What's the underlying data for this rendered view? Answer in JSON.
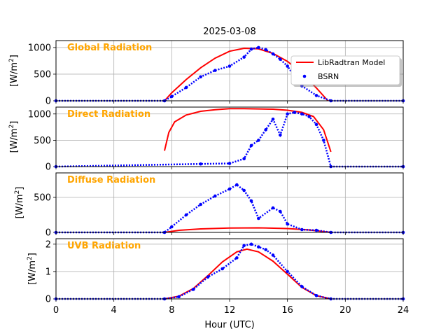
{
  "chart_data": [
    {
      "type": "line",
      "panel_title": "Global Radiation",
      "title": "2025-03-08",
      "ylabel": "[W/m²]",
      "xlim": [
        0,
        24
      ],
      "ylim": [
        0,
        1130
      ],
      "yticks": [
        "0",
        "500",
        "1000"
      ],
      "grid": true,
      "legend_position": "right",
      "series": [
        {
          "name": "LibRadtran Model",
          "style": "line",
          "x": [
            7.5,
            8.0,
            9.0,
            10.0,
            11.0,
            12.0,
            13.0,
            14.0,
            15.0,
            16.0,
            17.0,
            18.0,
            18.8
          ],
          "y": [
            0,
            150,
            400,
            620,
            800,
            930,
            985,
            975,
            890,
            740,
            520,
            240,
            0
          ]
        },
        {
          "name": "BSRN",
          "style": "points",
          "x": [
            0,
            7.5,
            8.0,
            9.0,
            10.0,
            11.0,
            12.0,
            13.0,
            13.5,
            14.0,
            14.5,
            15.0,
            15.5,
            16.0,
            16.5,
            17.0,
            18.0,
            19.0,
            24.0
          ],
          "y": [
            0,
            0,
            80,
            250,
            450,
            570,
            650,
            820,
            970,
            1000,
            960,
            880,
            780,
            650,
            450,
            280,
            100,
            0,
            0
          ]
        }
      ]
    },
    {
      "type": "line",
      "panel_title": "Direct Radiation",
      "ylabel": "[W/m²]",
      "xlim": [
        0,
        24
      ],
      "ylim": [
        0,
        1130
      ],
      "yticks": [
        "0",
        "500",
        "1000"
      ],
      "grid": true,
      "series": [
        {
          "name": "LibRadtran Model",
          "style": "line",
          "x": [
            7.5,
            7.8,
            8.2,
            9.0,
            10.0,
            11.0,
            12.0,
            13.0,
            14.0,
            15.0,
            16.0,
            17.0,
            17.8,
            18.5,
            19.0
          ],
          "y": [
            300,
            650,
            850,
            980,
            1050,
            1080,
            1100,
            1100,
            1095,
            1090,
            1070,
            1030,
            950,
            700,
            280
          ]
        },
        {
          "name": "BSRN",
          "style": "points",
          "x": [
            0,
            10.0,
            12.0,
            13.0,
            13.5,
            14.0,
            14.5,
            15.0,
            15.5,
            16.0,
            16.5,
            17.0,
            17.5,
            18.0,
            18.5,
            19.0,
            24.0
          ],
          "y": [
            0,
            50,
            60,
            150,
            400,
            500,
            700,
            900,
            600,
            1000,
            1030,
            1000,
            950,
            800,
            500,
            0,
            0
          ]
        }
      ]
    },
    {
      "type": "line",
      "panel_title": "Diffuse Radiation",
      "ylabel": "[W/m²]",
      "xlim": [
        0,
        24
      ],
      "ylim": [
        0,
        850
      ],
      "yticks": [
        "0",
        "500"
      ],
      "grid": true,
      "series": [
        {
          "name": "LibRadtran Model",
          "style": "line",
          "x": [
            7.5,
            8.5,
            10.0,
            12.0,
            14.0,
            16.0,
            17.5,
            19.0
          ],
          "y": [
            0,
            30,
            50,
            62,
            65,
            55,
            35,
            0
          ]
        },
        {
          "name": "BSRN",
          "style": "points",
          "x": [
            0,
            7.5,
            8.0,
            9.0,
            10.0,
            11.0,
            12.0,
            12.5,
            13.0,
            13.5,
            14.0,
            15.0,
            15.5,
            16.0,
            17.0,
            18.0,
            19.0,
            24.0
          ],
          "y": [
            0,
            0,
            80,
            250,
            400,
            520,
            620,
            680,
            600,
            450,
            200,
            350,
            300,
            120,
            40,
            30,
            0,
            0
          ]
        }
      ]
    },
    {
      "type": "line",
      "panel_title": "UVB Radiation",
      "ylabel": "[W/m²]",
      "xlabel": "Hour (UTC)",
      "xlim": [
        0,
        24
      ],
      "xticks": [
        "0",
        "4",
        "8",
        "12",
        "16",
        "20",
        "24"
      ],
      "ylim": [
        0,
        2.2
      ],
      "yticks": [
        "0",
        "1",
        "2"
      ],
      "grid": true,
      "series": [
        {
          "name": "LibRadtran Model",
          "style": "line",
          "x": [
            7.5,
            8.5,
            9.5,
            10.5,
            11.5,
            12.5,
            13.2,
            14.0,
            15.0,
            16.0,
            17.0,
            18.0,
            19.0
          ],
          "y": [
            0,
            0.1,
            0.38,
            0.85,
            1.35,
            1.72,
            1.82,
            1.72,
            1.38,
            0.9,
            0.42,
            0.12,
            0
          ]
        },
        {
          "name": "BSRN",
          "style": "points",
          "x": [
            0,
            7.5,
            8.5,
            9.5,
            10.5,
            11.5,
            12.5,
            13.0,
            13.5,
            14.0,
            14.5,
            15.0,
            16.0,
            17.0,
            18.0,
            19.0,
            24.0
          ],
          "y": [
            0,
            0,
            0.08,
            0.35,
            0.8,
            1.1,
            1.5,
            1.95,
            2.0,
            1.9,
            1.8,
            1.6,
            1.0,
            0.45,
            0.12,
            0,
            0
          ]
        }
      ]
    }
  ],
  "colors": {
    "model": "#ff0000",
    "bsrn": "#0000ff",
    "panel_title": "#ffa500"
  }
}
